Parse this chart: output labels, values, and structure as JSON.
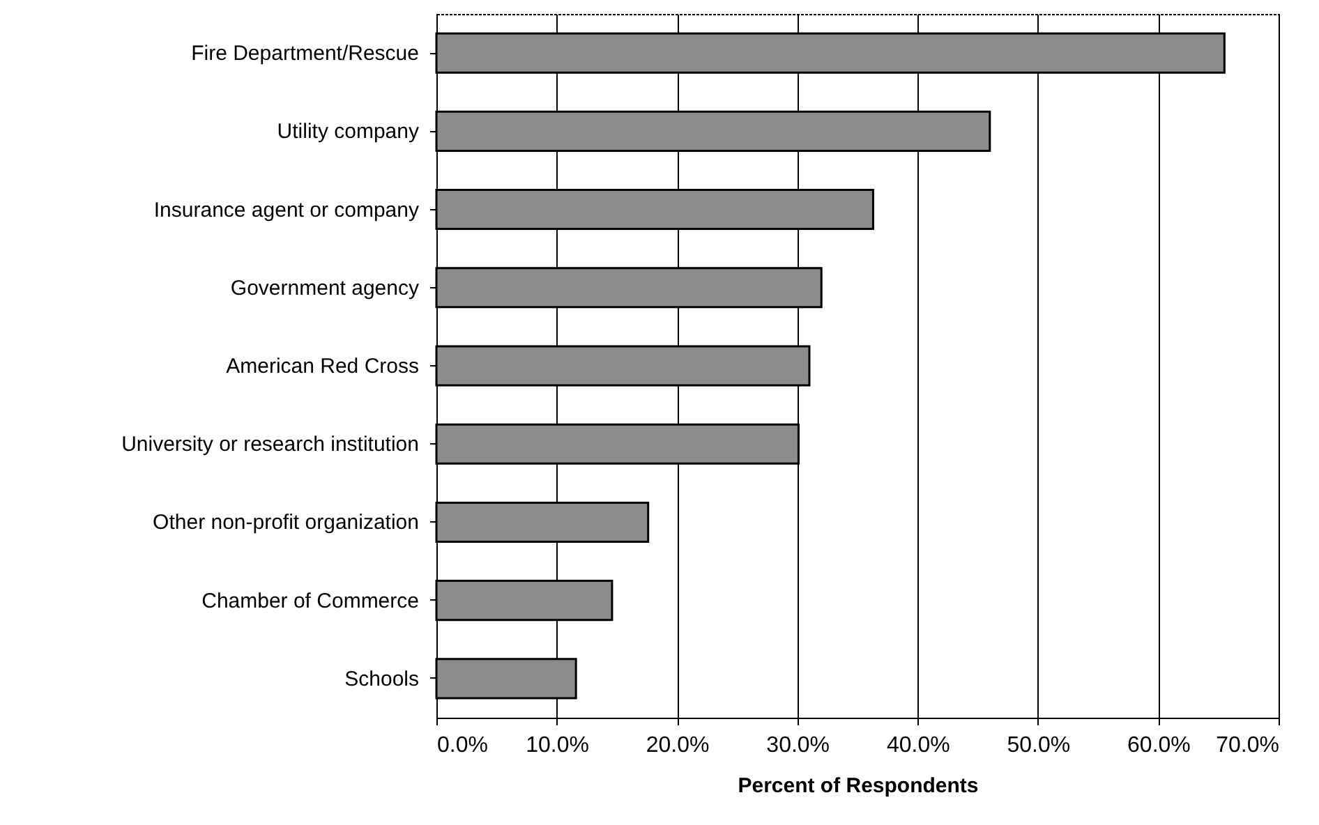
{
  "chart_data": {
    "type": "bar",
    "orientation": "horizontal",
    "xlabel": "Percent of Respondents",
    "categories": [
      "Fire Department/Rescue",
      "Utility company",
      "Insurance agent or company",
      "Government agency",
      "American Red Cross",
      "University or research institution",
      "Other non-profit organization",
      "Chamber of Commerce",
      "Schools"
    ],
    "values": [
      65.5,
      46.0,
      36.3,
      32.0,
      31.0,
      30.1,
      17.6,
      14.6,
      11.6
    ],
    "color": "#8c8c8c",
    "xlim": [
      0,
      70
    ],
    "xticks": [
      {
        "value": 0,
        "label": "0.0%"
      },
      {
        "value": 10,
        "label": "10.0%"
      },
      {
        "value": 20,
        "label": "20.0%"
      },
      {
        "value": 30,
        "label": "30.0%"
      },
      {
        "value": 40,
        "label": "40.0%"
      },
      {
        "value": 50,
        "label": "50.0%"
      },
      {
        "value": 60,
        "label": "60.0%"
      },
      {
        "value": 70,
        "label": "70.0%"
      }
    ],
    "grid": "x"
  }
}
